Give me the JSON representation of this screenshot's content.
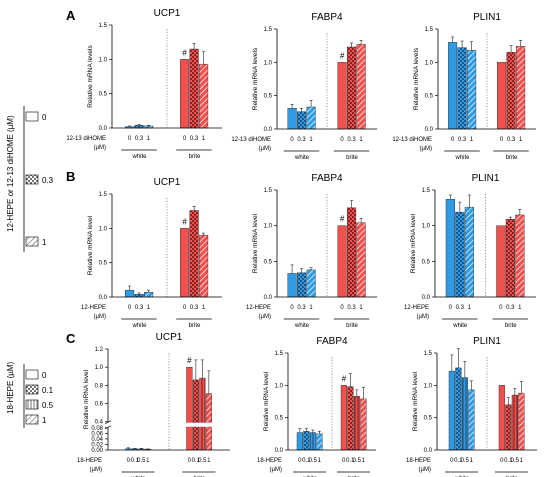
{
  "figure": {
    "colors": {
      "white": "#2e9be4",
      "brite": "#f0504e",
      "axis": "#000000"
    },
    "legend_top": {
      "title": "12-HEPE or 12-13 diHOME (µM)",
      "labels": [
        "0",
        "0.3",
        "1"
      ]
    },
    "legend_bottom": {
      "title": "18-HEPE (µM)",
      "labels": [
        "0",
        "0.1",
        "0.5",
        "1"
      ]
    }
  },
  "chart_data": [
    {
      "type": "bar",
      "panel": "A",
      "title": "UCP1",
      "ylabel": "Relative mRNA levels",
      "ylim": [
        0,
        1.5
      ],
      "yticks": [
        "0.0",
        "0.5",
        "1.0",
        "1.5"
      ],
      "treatment": "12-13 diHOME",
      "unit": "(µM)",
      "dose_labels": [
        "0",
        "0.3",
        "1"
      ],
      "groups": [
        "white",
        "brite"
      ],
      "grid": false,
      "series": [
        {
          "name": "white",
          "values": [
            0.02,
            0.04,
            0.03
          ],
          "errors": [
            0.01,
            0.01,
            0.01
          ]
        },
        {
          "name": "brite",
          "values": [
            1.0,
            1.15,
            0.93
          ],
          "errors": [
            0.0,
            0.08,
            0.18
          ]
        }
      ],
      "annotation": "#"
    },
    {
      "type": "bar",
      "panel": "A",
      "title": "FABP4",
      "ylabel": "Relative mRNA levels",
      "ylim": [
        0,
        1.5
      ],
      "yticks": [
        "0.0",
        "0.5",
        "1.0",
        "1.5"
      ],
      "treatment": "12-13 diHOME",
      "unit": "(µM)",
      "dose_labels": [
        "0",
        "0.3",
        "1"
      ],
      "groups": [
        "white",
        "brite"
      ],
      "grid": false,
      "series": [
        {
          "name": "white",
          "values": [
            0.31,
            0.26,
            0.33
          ],
          "errors": [
            0.06,
            0.05,
            0.1
          ]
        },
        {
          "name": "brite",
          "values": [
            1.0,
            1.23,
            1.27
          ],
          "errors": [
            0.0,
            0.06,
            0.06
          ]
        }
      ],
      "annotation": "#"
    },
    {
      "type": "bar",
      "panel": "A",
      "title": "PLIN1",
      "ylabel": "Relative mRNA levels",
      "ylim": [
        0,
        1.5
      ],
      "yticks": [
        "0.0",
        "0.5",
        "1.0",
        "1.5"
      ],
      "treatment": "12-13 diHOME",
      "unit": "(µM)",
      "dose_labels": [
        "0",
        "0.3",
        "1"
      ],
      "groups": [
        "white",
        "brite"
      ],
      "grid": false,
      "series": [
        {
          "name": "white",
          "values": [
            1.3,
            1.22,
            1.18
          ],
          "errors": [
            0.08,
            0.1,
            0.13
          ]
        },
        {
          "name": "brite",
          "values": [
            1.0,
            1.15,
            1.24
          ],
          "errors": [
            0.0,
            0.1,
            0.09
          ]
        }
      ]
    },
    {
      "type": "bar",
      "panel": "B",
      "title": "UCP1",
      "ylabel": "Relative mRNA level",
      "ylim": [
        0,
        1.5
      ],
      "yticks": [
        "0.0",
        "0.5",
        "1.0",
        "1.5"
      ],
      "treatment": "12-HEPE",
      "unit": "(µM)",
      "dose_labels": [
        "0",
        "0.3",
        "1"
      ],
      "groups": [
        "white",
        "brite"
      ],
      "grid": false,
      "series": [
        {
          "name": "white",
          "values": [
            0.1,
            0.04,
            0.07
          ],
          "errors": [
            0.06,
            0.02,
            0.03
          ]
        },
        {
          "name": "brite",
          "values": [
            1.0,
            1.26,
            0.9
          ],
          "errors": [
            0.0,
            0.06,
            0.03
          ]
        }
      ],
      "annotation": "#"
    },
    {
      "type": "bar",
      "panel": "B",
      "title": "FABP4",
      "ylabel": "Relative mRNA level",
      "ylim": [
        0,
        1.5
      ],
      "yticks": [
        "0.0",
        "0.5",
        "1.0",
        "1.5"
      ],
      "treatment": "12-HEPE",
      "unit": "(µM)",
      "dose_labels": [
        "0",
        "0.3",
        "1"
      ],
      "groups": [
        "white",
        "brite"
      ],
      "grid": false,
      "series": [
        {
          "name": "white",
          "values": [
            0.33,
            0.34,
            0.38
          ],
          "errors": [
            0.12,
            0.06,
            0.03
          ]
        },
        {
          "name": "brite",
          "values": [
            1.0,
            1.25,
            1.04
          ],
          "errors": [
            0.0,
            0.1,
            0.06
          ]
        }
      ],
      "annotation": "#"
    },
    {
      "type": "bar",
      "panel": "B",
      "title": "PLIN1",
      "ylabel": "Relative mRNA level",
      "ylim": [
        0,
        1.5
      ],
      "yticks": [
        "0.0",
        "0.5",
        "1.0",
        "1.5"
      ],
      "treatment": "12-HEPE",
      "unit": "(µM)",
      "dose_labels": [
        "0",
        "0.3",
        "1"
      ],
      "groups": [
        "white",
        "brite"
      ],
      "grid": false,
      "series": [
        {
          "name": "white",
          "values": [
            1.37,
            1.19,
            1.26
          ],
          "errors": [
            0.06,
            0.14,
            0.17
          ]
        },
        {
          "name": "brite",
          "values": [
            1.0,
            1.09,
            1.15
          ],
          "errors": [
            0.0,
            0.03,
            0.08
          ]
        }
      ]
    },
    {
      "type": "bar",
      "panel": "C",
      "title": "UCP1",
      "ylabel": "Relative mRNA level",
      "ylim": [
        0,
        1.2
      ],
      "axis_break": [
        0.08,
        0.4
      ],
      "yticks": [
        "0.00",
        "0.02",
        "0.04",
        "0.06",
        "0.08",
        "0.4",
        "0.6",
        "0.8",
        "1.0",
        "1.2"
      ],
      "treatment": "18-HEPE",
      "unit": "(µM)",
      "dose_labels": [
        "0",
        "0.1",
        "0.5",
        "1"
      ],
      "groups": [
        "white",
        "brite"
      ],
      "grid": false,
      "series": [
        {
          "name": "white",
          "values": [
            0.005,
            0.004,
            0.004,
            0.003
          ],
          "errors": [
            0.003,
            0.002,
            0.002,
            0.001
          ]
        },
        {
          "name": "brite",
          "values": [
            1.0,
            0.86,
            0.88,
            0.71
          ],
          "errors": [
            0.0,
            0.22,
            0.2,
            0.25
          ]
        }
      ],
      "annotation": "#"
    },
    {
      "type": "bar",
      "panel": "C",
      "title": "FABP4",
      "ylabel": "Relative mRNA level",
      "ylim": [
        0,
        1.5
      ],
      "yticks": [
        "0.0",
        "0.5",
        "1.0",
        "1.5"
      ],
      "treatment": "18-HEPE",
      "unit": "(µM)",
      "dose_labels": [
        "0",
        "0.1",
        "0.5",
        "1"
      ],
      "groups": [
        "white",
        "brite"
      ],
      "grid": false,
      "series": [
        {
          "name": "white",
          "values": [
            0.27,
            0.29,
            0.27,
            0.25
          ],
          "errors": [
            0.06,
            0.04,
            0.04,
            0.04
          ]
        },
        {
          "name": "brite",
          "values": [
            1.0,
            0.98,
            0.83,
            0.79
          ],
          "errors": [
            0.0,
            0.2,
            0.1,
            0.18
          ]
        }
      ],
      "annotation": "#"
    },
    {
      "type": "bar",
      "panel": "C",
      "title": "PLIN1",
      "ylabel": "Relative mRNA level",
      "ylim": [
        0,
        1.5
      ],
      "yticks": [
        "0.0",
        "0.5",
        "1.0",
        "1.5"
      ],
      "treatment": "18-HEPE",
      "unit": "(µM)",
      "dose_labels": [
        "0",
        "0.1",
        "0.5",
        "1"
      ],
      "groups": [
        "white",
        "brite"
      ],
      "grid": false,
      "series": [
        {
          "name": "white",
          "values": [
            1.22,
            1.27,
            1.12,
            0.93
          ],
          "errors": [
            0.25,
            0.3,
            0.25,
            0.14
          ]
        },
        {
          "name": "brite",
          "values": [
            1.0,
            0.7,
            0.85,
            0.88
          ],
          "errors": [
            0.0,
            0.11,
            0.1,
            0.18
          ]
        }
      ]
    }
  ]
}
